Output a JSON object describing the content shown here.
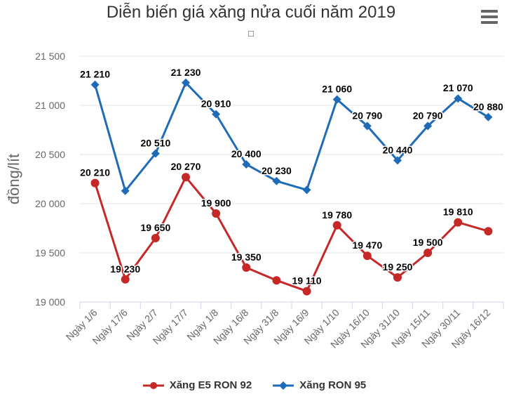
{
  "chart_data": {
    "type": "line",
    "title": "Diễn biến giá xăng nửa cuối năm 2019",
    "subtitle": "",
    "ylabel": "đồng/lít",
    "xlabel": "",
    "ylim": [
      19000,
      21500
    ],
    "yticks": [
      19000,
      19500,
      20000,
      20500,
      21000,
      21500
    ],
    "ytick_labels": [
      "19 000",
      "19 500",
      "20 000",
      "20 500",
      "21 000",
      "21 500"
    ],
    "grid": true,
    "legend_position": "bottom",
    "categories": [
      "Ngày 1/6",
      "Ngày 17/6",
      "Ngày 2/7",
      "Ngày 17/7",
      "Ngày 1/8",
      "Ngày 16/8",
      "Ngày 31/8",
      "Ngày 16/9",
      "Ngày 1/10",
      "Ngày 16/10",
      "Ngày 31/10",
      "Ngày 15/11",
      "Ngày 30/11",
      "Ngày 16/12"
    ],
    "series": [
      {
        "name": "Xăng E5 RON 92",
        "color": "#c62828",
        "marker": "circle",
        "values": [
          20210,
          19230,
          19650,
          20270,
          19900,
          19350,
          19220,
          19110,
          19780,
          19470,
          19250,
          19500,
          19810,
          19720
        ],
        "labels": [
          "20 210",
          "19 230",
          "19 650",
          "20 270",
          "19 900",
          "19 350",
          "",
          "19 110",
          "19 780",
          "19 470",
          "19 250",
          "19 500",
          "19 810",
          ""
        ]
      },
      {
        "name": "Xăng RON 95",
        "color": "#1f6bb8",
        "marker": "diamond",
        "values": [
          21210,
          20130,
          20510,
          21230,
          20910,
          20400,
          20230,
          20140,
          21060,
          20790,
          20440,
          20790,
          21070,
          20880
        ],
        "labels": [
          "21 210",
          "",
          "20 510",
          "21 230",
          "20 910",
          "20 400",
          "20 230",
          "",
          "21 060",
          "20 790",
          "20 440",
          "20 790",
          "21 070",
          "20 880"
        ]
      }
    ]
  },
  "ui": {
    "menu_icon": "hamburger-menu-icon",
    "subtitle_icon": "□"
  }
}
